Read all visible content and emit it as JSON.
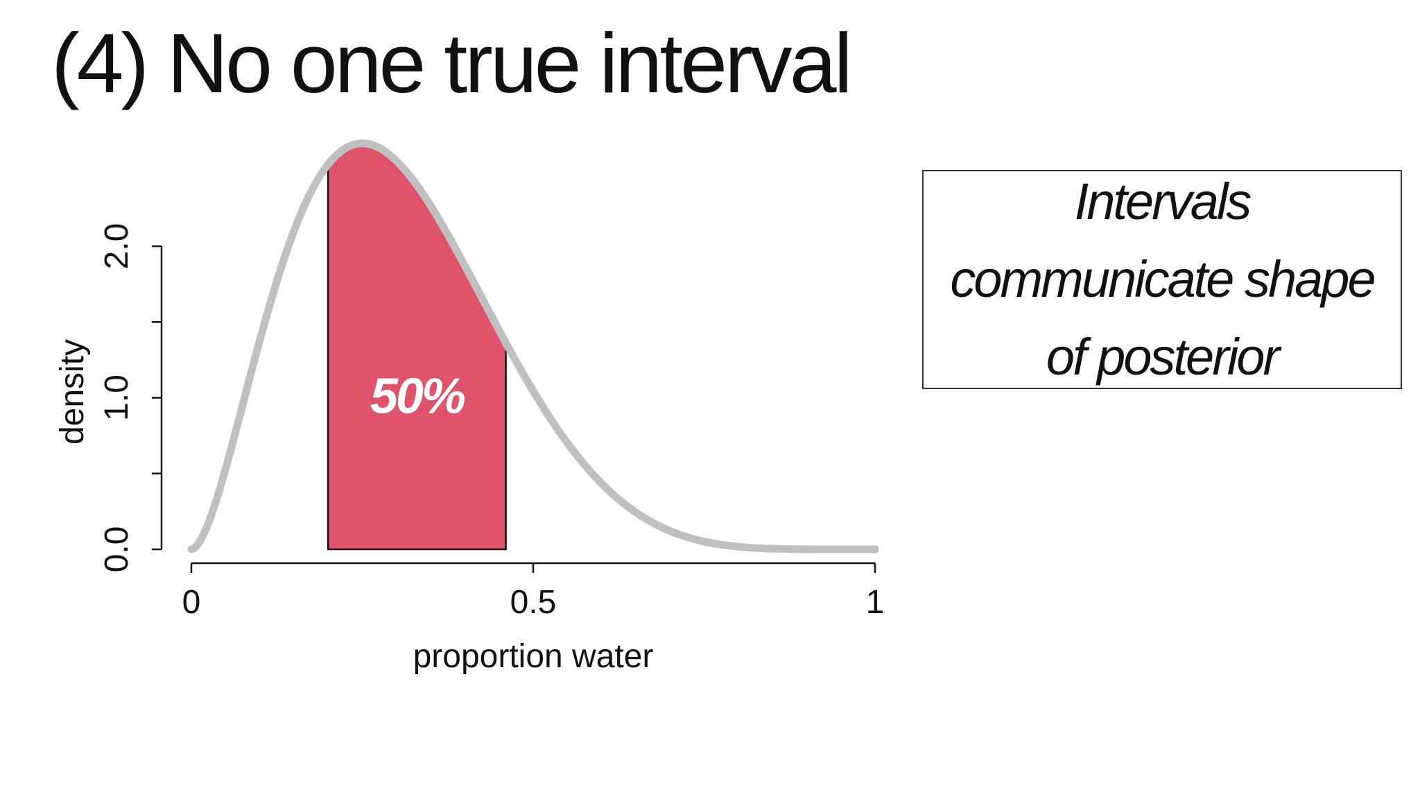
{
  "slide": {
    "title": "(4) No one true interval"
  },
  "callout": {
    "text": "Intervals\ncommunicate shape\nof posterior"
  },
  "chart_data": {
    "type": "area",
    "title": "",
    "xlabel": "proportion water",
    "ylabel": "density",
    "xlim": [
      0,
      1
    ],
    "ylim": [
      0,
      2.0
    ],
    "x_ticks": [
      0,
      0.5,
      1
    ],
    "x_tick_labels": [
      "0",
      "0.5",
      "1"
    ],
    "y_ticks": [
      0.0,
      0.5,
      1.0,
      1.5,
      2.0
    ],
    "y_tick_labels": [
      "0.0",
      "",
      "1.0",
      "",
      "2.0"
    ],
    "grid": false,
    "series": [
      {
        "distribution": "beta",
        "alpha": 2.8,
        "beta": 6.4,
        "color": "#c0c0c0"
      }
    ],
    "shaded_interval": {
      "lower": 0.2,
      "upper": 0.46,
      "label": "50%",
      "color": "#df536b"
    }
  }
}
